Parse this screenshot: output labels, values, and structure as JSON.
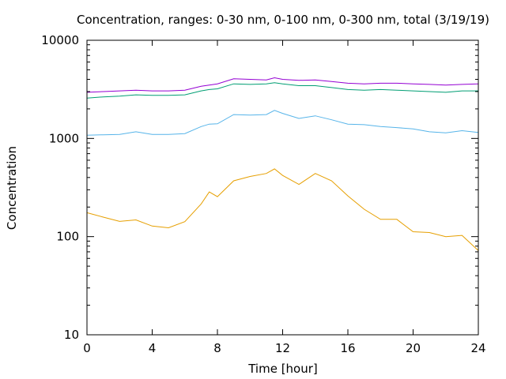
{
  "chart_data": {
    "type": "line",
    "title": "Concentration, ranges: 0-30 nm, 0-100 nm, 0-300 nm, total (3/19/19)",
    "xlabel": "Time [hour]",
    "ylabel": "Concentration",
    "xlim": [
      0,
      24
    ],
    "ylim": [
      10,
      10000
    ],
    "yscale": "log",
    "grid": false,
    "legend": "none",
    "x_ticks": [
      "0",
      "4",
      "8",
      "12",
      "16",
      "20",
      "24"
    ],
    "y_ticks": [
      "10",
      "100",
      "1000",
      "10000"
    ],
    "x": [
      0,
      1,
      2,
      3,
      4,
      5,
      6,
      7,
      7.5,
      8,
      9,
      10,
      11,
      11.5,
      12,
      13,
      14,
      15,
      16,
      17,
      18,
      19,
      20,
      21,
      22,
      23,
      24
    ],
    "series": [
      {
        "color": "#E69F00",
        "values": [
          175,
          158,
          143,
          148,
          128,
          123,
          142,
          215,
          285,
          255,
          370,
          410,
          440,
          490,
          420,
          340,
          440,
          370,
          260,
          190,
          150,
          150,
          112,
          110,
          100,
          103,
          72
        ]
      },
      {
        "color": "#56B4E9",
        "values": [
          1080,
          1090,
          1100,
          1170,
          1100,
          1100,
          1120,
          1320,
          1400,
          1410,
          1750,
          1730,
          1750,
          1930,
          1800,
          1600,
          1700,
          1550,
          1400,
          1380,
          1320,
          1290,
          1250,
          1170,
          1140,
          1200,
          1150
        ]
      },
      {
        "color": "#009E73",
        "values": [
          2580,
          2650,
          2700,
          2780,
          2750,
          2750,
          2780,
          3050,
          3150,
          3200,
          3600,
          3550,
          3600,
          3700,
          3600,
          3450,
          3450,
          3300,
          3150,
          3100,
          3150,
          3100,
          3050,
          3000,
          2950,
          3050,
          3050
        ]
      },
      {
        "color": "#9400D3",
        "values": [
          2950,
          3000,
          3050,
          3100,
          3050,
          3050,
          3100,
          3400,
          3500,
          3600,
          4050,
          4000,
          3950,
          4150,
          4000,
          3900,
          3950,
          3800,
          3650,
          3600,
          3650,
          3650,
          3600,
          3550,
          3500,
          3550,
          3600
        ]
      }
    ]
  }
}
